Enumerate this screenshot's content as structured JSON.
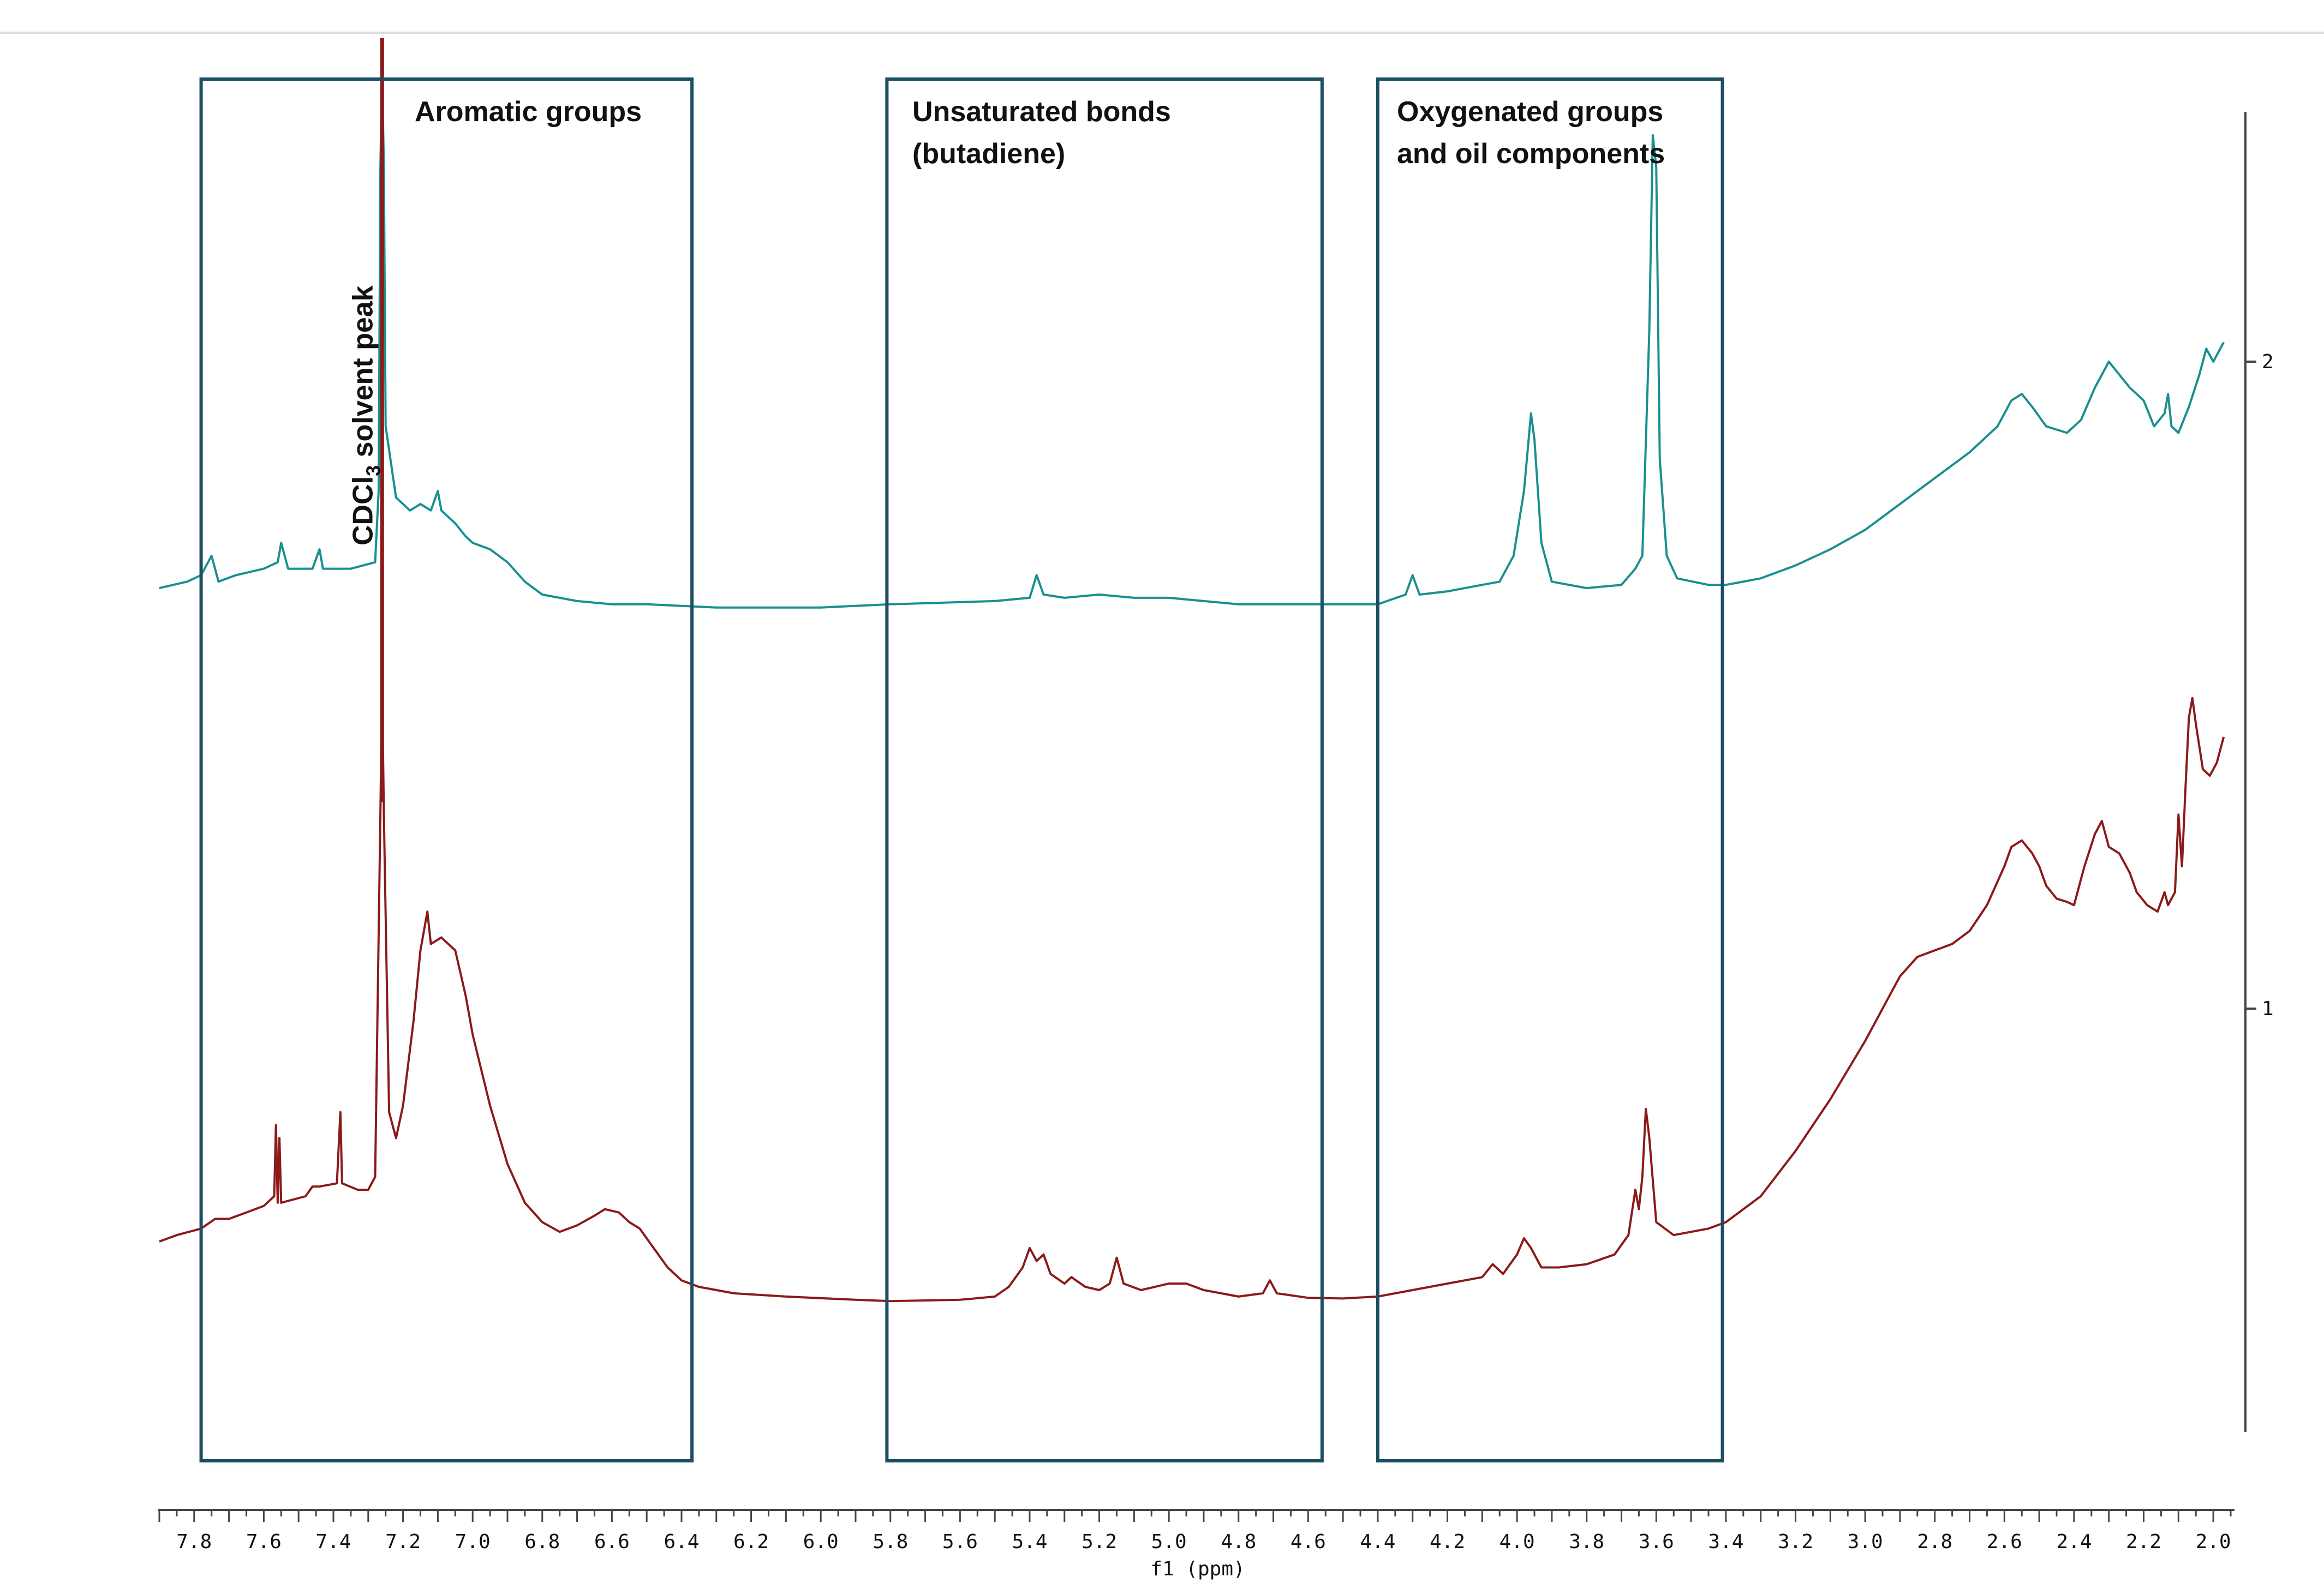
{
  "chart_data": {
    "type": "line",
    "xlabel": "f1 (ppm)",
    "xlim": [
      7.9,
      1.95
    ],
    "x_reversed": true,
    "x_ticks": [
      "7.8",
      "7.6",
      "7.4",
      "7.2",
      "7.0",
      "6.8",
      "6.6",
      "6.4",
      "6.2",
      "6.0",
      "5.8",
      "5.6",
      "5.4",
      "5.2",
      "5.0",
      "4.8",
      "4.6",
      "4.4",
      "4.2",
      "4.0",
      "3.8",
      "3.6",
      "3.4",
      "3.2",
      "3.0",
      "2.8",
      "2.6",
      "2.4",
      "2.2",
      "2.0"
    ],
    "ylim": [
      0.35,
      2.5
    ],
    "y_ticks": [
      "1",
      "2"
    ],
    "colors": {
      "teal": "#1a8f8f",
      "red": "#8b1a1a",
      "box": "#1c4e63",
      "frame": "#444444"
    },
    "regions": [
      {
        "label_lines": [
          "Aromatic groups"
        ],
        "x_from": 7.78,
        "x_to": 6.37
      },
      {
        "label_lines": [
          "Unsaturated bonds",
          "(butadiene)"
        ],
        "x_from": 5.81,
        "x_to": 4.56
      },
      {
        "label_lines": [
          "Oxygenated groups",
          "and oil components"
        ],
        "x_from": 4.4,
        "x_to": 3.41
      }
    ],
    "solvent_peak": {
      "x": 7.26,
      "label_main": "CDCl",
      "label_sub": "3",
      "label_tail": " solvent peak"
    },
    "series": [
      {
        "color": "#1a8f8f",
        "points": [
          [
            7.9,
            1.65
          ],
          [
            7.82,
            1.66
          ],
          [
            7.78,
            1.67
          ],
          [
            7.75,
            1.7
          ],
          [
            7.73,
            1.66
          ],
          [
            7.68,
            1.67
          ],
          [
            7.6,
            1.68
          ],
          [
            7.56,
            1.69
          ],
          [
            7.55,
            1.72
          ],
          [
            7.53,
            1.68
          ],
          [
            7.46,
            1.68
          ],
          [
            7.44,
            1.71
          ],
          [
            7.43,
            1.68
          ],
          [
            7.35,
            1.68
          ],
          [
            7.28,
            1.69
          ],
          [
            7.27,
            1.8
          ],
          [
            7.265,
            2.3
          ],
          [
            7.26,
            2.45
          ],
          [
            7.255,
            2.3
          ],
          [
            7.25,
            1.9
          ],
          [
            7.22,
            1.79
          ],
          [
            7.18,
            1.77
          ],
          [
            7.15,
            1.78
          ],
          [
            7.12,
            1.77
          ],
          [
            7.1,
            1.8
          ],
          [
            7.09,
            1.77
          ],
          [
            7.05,
            1.75
          ],
          [
            7.02,
            1.73
          ],
          [
            7.0,
            1.72
          ],
          [
            6.95,
            1.71
          ],
          [
            6.9,
            1.69
          ],
          [
            6.85,
            1.66
          ],
          [
            6.8,
            1.64
          ],
          [
            6.7,
            1.63
          ],
          [
            6.6,
            1.625
          ],
          [
            6.5,
            1.625
          ],
          [
            6.3,
            1.62
          ],
          [
            6.0,
            1.62
          ],
          [
            5.8,
            1.625
          ],
          [
            5.5,
            1.63
          ],
          [
            5.4,
            1.635
          ],
          [
            5.38,
            1.67
          ],
          [
            5.36,
            1.64
          ],
          [
            5.3,
            1.635
          ],
          [
            5.2,
            1.64
          ],
          [
            5.1,
            1.635
          ],
          [
            5.0,
            1.635
          ],
          [
            4.8,
            1.625
          ],
          [
            4.6,
            1.625
          ],
          [
            4.4,
            1.625
          ],
          [
            4.32,
            1.64
          ],
          [
            4.3,
            1.67
          ],
          [
            4.28,
            1.64
          ],
          [
            4.2,
            1.645
          ],
          [
            4.1,
            1.655
          ],
          [
            4.05,
            1.66
          ],
          [
            4.01,
            1.7
          ],
          [
            3.98,
            1.8
          ],
          [
            3.96,
            1.92
          ],
          [
            3.95,
            1.88
          ],
          [
            3.93,
            1.72
          ],
          [
            3.9,
            1.66
          ],
          [
            3.8,
            1.65
          ],
          [
            3.7,
            1.655
          ],
          [
            3.66,
            1.68
          ],
          [
            3.64,
            1.7
          ],
          [
            3.62,
            2.05
          ],
          [
            3.61,
            2.35
          ],
          [
            3.6,
            2.3
          ],
          [
            3.59,
            1.85
          ],
          [
            3.57,
            1.7
          ],
          [
            3.54,
            1.665
          ],
          [
            3.45,
            1.655
          ],
          [
            3.4,
            1.655
          ],
          [
            3.3,
            1.665
          ],
          [
            3.2,
            1.685
          ],
          [
            3.1,
            1.71
          ],
          [
            3.0,
            1.74
          ],
          [
            2.9,
            1.78
          ],
          [
            2.8,
            1.82
          ],
          [
            2.7,
            1.86
          ],
          [
            2.62,
            1.9
          ],
          [
            2.58,
            1.94
          ],
          [
            2.55,
            1.95
          ],
          [
            2.52,
            1.93
          ],
          [
            2.48,
            1.9
          ],
          [
            2.42,
            1.89
          ],
          [
            2.38,
            1.91
          ],
          [
            2.34,
            1.96
          ],
          [
            2.3,
            2.0
          ],
          [
            2.27,
            1.98
          ],
          [
            2.24,
            1.96
          ],
          [
            2.2,
            1.94
          ],
          [
            2.17,
            1.9
          ],
          [
            2.14,
            1.92
          ],
          [
            2.13,
            1.95
          ],
          [
            2.12,
            1.9
          ],
          [
            2.1,
            1.89
          ],
          [
            2.07,
            1.93
          ],
          [
            2.04,
            1.98
          ],
          [
            2.02,
            2.02
          ],
          [
            2.0,
            2.0
          ],
          [
            1.97,
            2.03
          ]
        ]
      },
      {
        "color": "#8b1a1a",
        "points": [
          [
            7.9,
            0.64
          ],
          [
            7.85,
            0.65
          ],
          [
            7.78,
            0.66
          ],
          [
            7.74,
            0.675
          ],
          [
            7.7,
            0.675
          ],
          [
            7.65,
            0.685
          ],
          [
            7.6,
            0.695
          ],
          [
            7.57,
            0.71
          ],
          [
            7.565,
            0.82
          ],
          [
            7.56,
            0.7
          ],
          [
            7.555,
            0.8
          ],
          [
            7.55,
            0.7
          ],
          [
            7.48,
            0.71
          ],
          [
            7.46,
            0.725
          ],
          [
            7.44,
            0.725
          ],
          [
            7.39,
            0.73
          ],
          [
            7.38,
            0.84
          ],
          [
            7.375,
            0.73
          ],
          [
            7.33,
            0.72
          ],
          [
            7.3,
            0.72
          ],
          [
            7.28,
            0.74
          ],
          [
            7.265,
            1.3
          ],
          [
            7.26,
            1.5
          ],
          [
            7.255,
            1.3
          ],
          [
            7.24,
            0.84
          ],
          [
            7.22,
            0.8
          ],
          [
            7.2,
            0.85
          ],
          [
            7.17,
            0.98
          ],
          [
            7.15,
            1.09
          ],
          [
            7.14,
            1.12
          ],
          [
            7.13,
            1.15
          ],
          [
            7.12,
            1.1
          ],
          [
            7.09,
            1.11
          ],
          [
            7.05,
            1.09
          ],
          [
            7.02,
            1.02
          ],
          [
            7.0,
            0.96
          ],
          [
            6.95,
            0.85
          ],
          [
            6.9,
            0.76
          ],
          [
            6.85,
            0.7
          ],
          [
            6.8,
            0.67
          ],
          [
            6.75,
            0.655
          ],
          [
            6.7,
            0.665
          ],
          [
            6.65,
            0.68
          ],
          [
            6.62,
            0.69
          ],
          [
            6.58,
            0.685
          ],
          [
            6.55,
            0.67
          ],
          [
            6.52,
            0.66
          ],
          [
            6.48,
            0.63
          ],
          [
            6.44,
            0.6
          ],
          [
            6.4,
            0.58
          ],
          [
            6.35,
            0.57
          ],
          [
            6.25,
            0.56
          ],
          [
            6.1,
            0.555
          ],
          [
            5.9,
            0.55
          ],
          [
            5.8,
            0.548
          ],
          [
            5.6,
            0.55
          ],
          [
            5.5,
            0.555
          ],
          [
            5.46,
            0.57
          ],
          [
            5.42,
            0.6
          ],
          [
            5.4,
            0.63
          ],
          [
            5.38,
            0.61
          ],
          [
            5.36,
            0.62
          ],
          [
            5.34,
            0.59
          ],
          [
            5.3,
            0.575
          ],
          [
            5.28,
            0.585
          ],
          [
            5.24,
            0.57
          ],
          [
            5.2,
            0.565
          ],
          [
            5.17,
            0.575
          ],
          [
            5.15,
            0.615
          ],
          [
            5.13,
            0.575
          ],
          [
            5.08,
            0.565
          ],
          [
            5.04,
            0.57
          ],
          [
            5.0,
            0.575
          ],
          [
            4.95,
            0.575
          ],
          [
            4.9,
            0.565
          ],
          [
            4.85,
            0.56
          ],
          [
            4.8,
            0.555
          ],
          [
            4.73,
            0.56
          ],
          [
            4.71,
            0.58
          ],
          [
            4.69,
            0.56
          ],
          [
            4.6,
            0.553
          ],
          [
            4.5,
            0.552
          ],
          [
            4.4,
            0.555
          ],
          [
            4.3,
            0.565
          ],
          [
            4.2,
            0.575
          ],
          [
            4.1,
            0.585
          ],
          [
            4.07,
            0.605
          ],
          [
            4.04,
            0.59
          ],
          [
            4.0,
            0.62
          ],
          [
            3.98,
            0.645
          ],
          [
            3.96,
            0.63
          ],
          [
            3.93,
            0.6
          ],
          [
            3.88,
            0.6
          ],
          [
            3.8,
            0.605
          ],
          [
            3.72,
            0.62
          ],
          [
            3.68,
            0.65
          ],
          [
            3.66,
            0.72
          ],
          [
            3.65,
            0.69
          ],
          [
            3.64,
            0.74
          ],
          [
            3.63,
            0.845
          ],
          [
            3.62,
            0.8
          ],
          [
            3.6,
            0.67
          ],
          [
            3.55,
            0.65
          ],
          [
            3.45,
            0.66
          ],
          [
            3.4,
            0.67
          ],
          [
            3.3,
            0.71
          ],
          [
            3.2,
            0.78
          ],
          [
            3.1,
            0.86
          ],
          [
            3.0,
            0.95
          ],
          [
            2.95,
            1.0
          ],
          [
            2.9,
            1.05
          ],
          [
            2.85,
            1.08
          ],
          [
            2.8,
            1.09
          ],
          [
            2.75,
            1.1
          ],
          [
            2.7,
            1.12
          ],
          [
            2.65,
            1.16
          ],
          [
            2.6,
            1.22
          ],
          [
            2.58,
            1.25
          ],
          [
            2.55,
            1.26
          ],
          [
            2.52,
            1.24
          ],
          [
            2.5,
            1.22
          ],
          [
            2.48,
            1.19
          ],
          [
            2.45,
            1.17
          ],
          [
            2.42,
            1.165
          ],
          [
            2.4,
            1.16
          ],
          [
            2.37,
            1.22
          ],
          [
            2.34,
            1.27
          ],
          [
            2.32,
            1.29
          ],
          [
            2.3,
            1.25
          ],
          [
            2.27,
            1.24
          ],
          [
            2.24,
            1.21
          ],
          [
            2.22,
            1.18
          ],
          [
            2.19,
            1.16
          ],
          [
            2.16,
            1.15
          ],
          [
            2.14,
            1.18
          ],
          [
            2.13,
            1.16
          ],
          [
            2.11,
            1.18
          ],
          [
            2.1,
            1.3
          ],
          [
            2.09,
            1.22
          ],
          [
            2.08,
            1.34
          ],
          [
            2.07,
            1.45
          ],
          [
            2.06,
            1.48
          ],
          [
            2.05,
            1.44
          ],
          [
            2.03,
            1.37
          ],
          [
            2.01,
            1.36
          ],
          [
            1.99,
            1.38
          ],
          [
            1.97,
            1.42
          ]
        ]
      }
    ]
  }
}
